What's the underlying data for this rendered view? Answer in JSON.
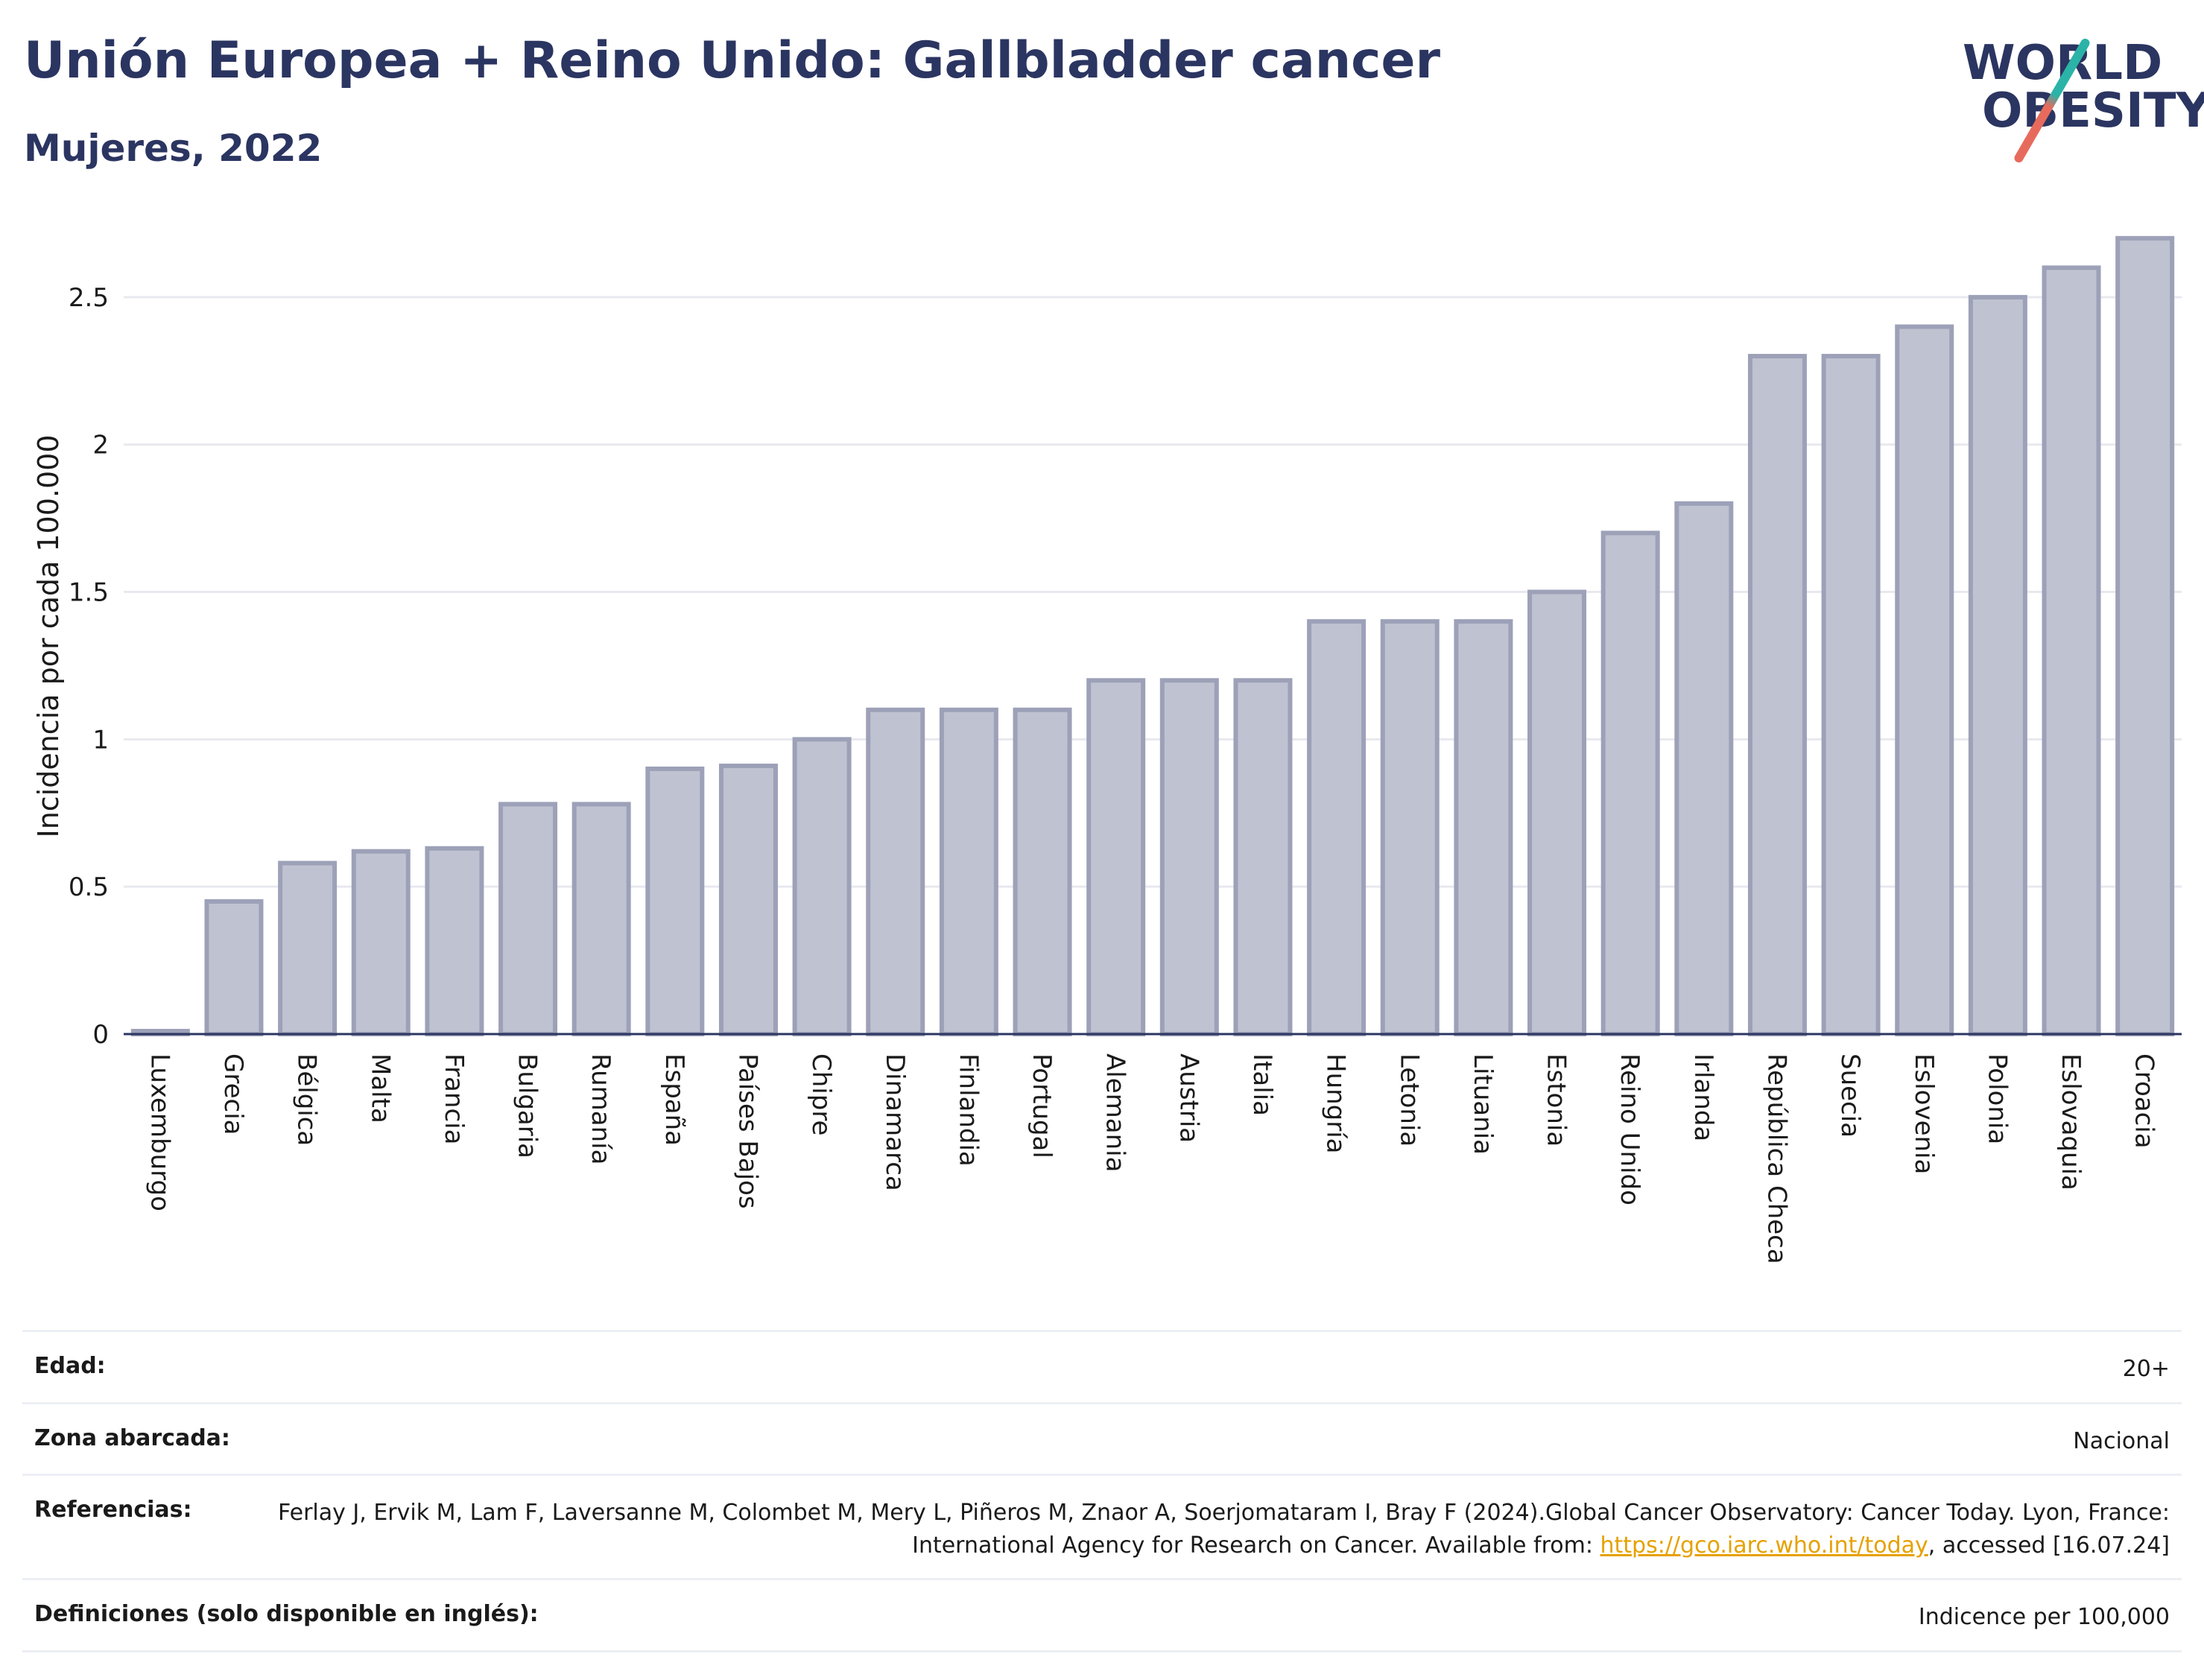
{
  "header": {
    "title": "Unión Europea + Reino Unido: Gallbladder cancer",
    "subtitle": "Mujeres, 2022"
  },
  "logo": {
    "line1": "WORLD",
    "line2": "OBESITY"
  },
  "chart_data": {
    "type": "bar",
    "title": "Unión Europea + Reino Unido: Gallbladder cancer",
    "subtitle": "Mujeres, 2022",
    "xlabel": "",
    "ylabel": "Incidencia por cada 100.000",
    "ylim": [
      0,
      2.75
    ],
    "yticks": [
      0,
      0.5,
      1,
      1.5,
      2,
      2.5
    ],
    "ytick_labels": [
      "0",
      "0.5",
      "1",
      "1.5",
      "2",
      "2.5"
    ],
    "grid": true,
    "categories": [
      "Luxemburgo",
      "Grecia",
      "Bélgica",
      "Malta",
      "Francia",
      "Bulgaria",
      "Rumanía",
      "España",
      "Países Bajos",
      "Chipre",
      "Dinamarca",
      "Finlandia",
      "Portugal",
      "Alemania",
      "Austria",
      "Italia",
      "Hungría",
      "Letonia",
      "Lituania",
      "Estonia",
      "Reino Unido",
      "Irlanda",
      "República Checa",
      "Suecia",
      "Eslovenia",
      "Polonia",
      "Eslovaquia",
      "Croacia"
    ],
    "values": [
      0.01,
      0.45,
      0.58,
      0.62,
      0.63,
      0.78,
      0.78,
      0.9,
      0.91,
      1.0,
      1.1,
      1.1,
      1.1,
      1.2,
      1.2,
      1.2,
      1.4,
      1.4,
      1.4,
      1.5,
      1.7,
      1.8,
      2.3,
      2.3,
      2.4,
      2.5,
      2.6,
      2.7
    ],
    "colors": {
      "bar_fill": "#bfc2d0",
      "bar_stroke": "#9da1b8",
      "grid": "#e8e9ef",
      "axis": "#2b3561"
    }
  },
  "info": {
    "rows": [
      {
        "label": "Edad:",
        "value": "20+"
      },
      {
        "label": "Zona abarcada:",
        "value": "Nacional"
      },
      {
        "label": "Referencias:",
        "value_part1": "Ferlay J, Ervik M, Lam F, Laversanne M, Colombet M, Mery L, Piñeros M, Znaor A, Soerjomataram I, Bray F (2024).Global Cancer Observatory: Cancer Today. Lyon, France: International Agency for Research on Cancer. Available from: ",
        "link": "https://gco.iarc.who.int/today",
        "value_part2": ", accessed [16.07.24]"
      },
      {
        "label": "Definiciones (solo disponible en inglés):",
        "value": "Indicence per 100,000"
      }
    ]
  }
}
